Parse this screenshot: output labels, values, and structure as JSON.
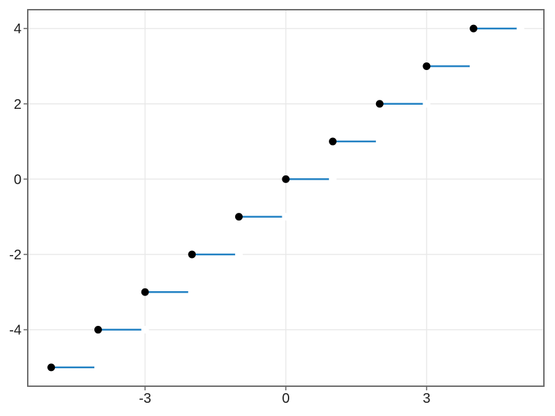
{
  "chart_data": {
    "type": "line",
    "description": "Step plot of y = floor(x): horizontal segments with filled dot at closed left endpoint and invisible white (open) right endpoint",
    "title": "",
    "xlabel": "",
    "ylabel": "",
    "xlim": [
      -5.5,
      5.5
    ],
    "ylim": [
      -5.5,
      4.5
    ],
    "xticks": [
      -3,
      0,
      3
    ],
    "xtick_labels": [
      "-3",
      "0",
      "3"
    ],
    "yticks": [
      -4,
      -2,
      0,
      2,
      4
    ],
    "ytick_labels": [
      "-4",
      "-2",
      "0",
      "2",
      "4"
    ],
    "grid": true,
    "legend": false,
    "steps": [
      {
        "y": -5,
        "x0": -5,
        "x1": -4
      },
      {
        "y": -4,
        "x0": -4,
        "x1": -3
      },
      {
        "y": -3,
        "x0": -3,
        "x1": -2
      },
      {
        "y": -2,
        "x0": -2,
        "x1": -1
      },
      {
        "y": -1,
        "x0": -1,
        "x1": 0
      },
      {
        "y": 0,
        "x0": 0,
        "x1": 1
      },
      {
        "y": 1,
        "x0": 1,
        "x1": 2
      },
      {
        "y": 2,
        "x0": 2,
        "x1": 3
      },
      {
        "y": 3,
        "x0": 3,
        "x1": 4
      },
      {
        "y": 4,
        "x0": 4,
        "x1": 5
      }
    ],
    "closed_points": [
      [
        -5,
        -5
      ],
      [
        -4,
        -4
      ],
      [
        -3,
        -3
      ],
      [
        -2,
        -2
      ],
      [
        -1,
        -1
      ],
      [
        0,
        0
      ],
      [
        1,
        1
      ],
      [
        2,
        2
      ],
      [
        3,
        3
      ],
      [
        4,
        4
      ]
    ],
    "open_points": [
      [
        -4,
        -5
      ],
      [
        -3,
        -4
      ],
      [
        -2,
        -3
      ],
      [
        -1,
        -2
      ],
      [
        0,
        -1
      ],
      [
        1,
        0
      ],
      [
        2,
        1
      ],
      [
        3,
        2
      ],
      [
        4,
        3
      ],
      [
        5,
        4
      ]
    ],
    "colors": {
      "line": "#1e7fc2",
      "closed_marker": "#000000",
      "open_marker": "#ffffff",
      "grid": "#e8e8e8",
      "frame": "#6b6b6b",
      "tick": "#6b6b6b",
      "tick_label": "#1c1c1c",
      "background": "#ffffff"
    },
    "style": {
      "line_width": 2.5,
      "marker_radius": 5.5,
      "grid_width": 1.4,
      "frame_width": 2,
      "tick_length": 6,
      "tick_font_size": 20
    }
  }
}
